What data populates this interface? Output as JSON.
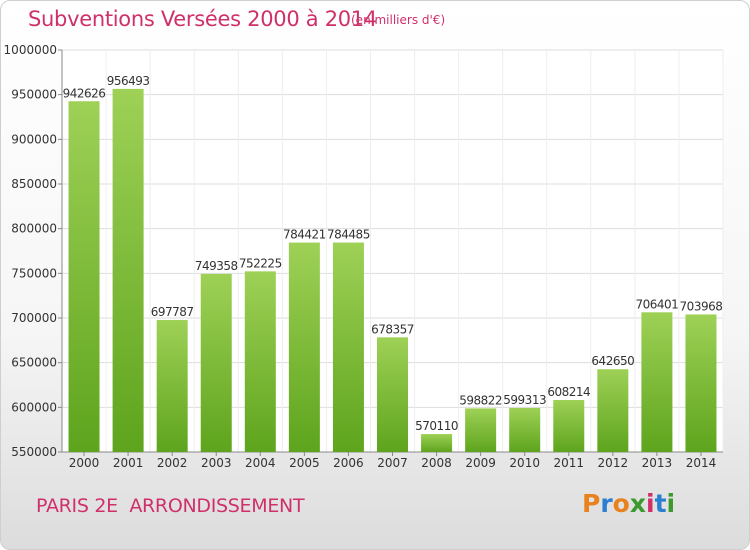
{
  "title": "Subventions Versées 2000 à 2014",
  "unit_note": "(en milliers d'€)",
  "place": "PARIS 2E  ARRONDISSEMENT",
  "logo": {
    "letters": [
      "P",
      "r",
      "o",
      "x",
      "i",
      "t",
      "i"
    ],
    "colors": [
      "#e8821e",
      "#2a7fd0",
      "#e8821e",
      "#3a9a2c",
      "#d0306a",
      "#2a7fd0",
      "#3a9a2c"
    ]
  },
  "colors": {
    "title": "#d0306a",
    "bar_light": "#9ed156",
    "bar_dark": "#5ea41d"
  },
  "chart_data": {
    "type": "bar",
    "title": "Subventions Versées 2000 à 2014",
    "xlabel": "",
    "ylabel": "",
    "categories": [
      "2000",
      "2001",
      "2002",
      "2003",
      "2004",
      "2005",
      "2006",
      "2007",
      "2008",
      "2009",
      "2010",
      "2011",
      "2012",
      "2013",
      "2014"
    ],
    "values": [
      942626,
      956493,
      697787,
      749358,
      752225,
      784421,
      784485,
      678357,
      570110,
      598822,
      599313,
      608214,
      642650,
      706401,
      703968
    ],
    "ylim": [
      550000,
      1000000
    ],
    "yticks": [
      550000,
      600000,
      650000,
      700000,
      750000,
      800000,
      850000,
      900000,
      950000,
      1000000
    ],
    "grid": true,
    "legend": "none"
  }
}
